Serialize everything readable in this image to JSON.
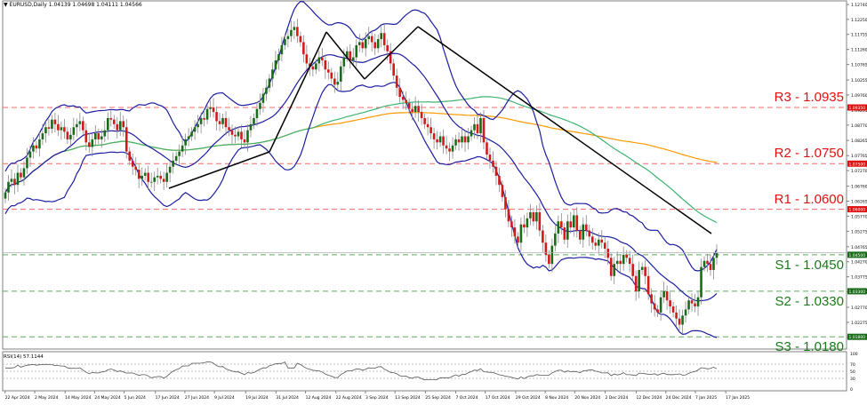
{
  "header": {
    "symbol": "EURUSD,Daily",
    "ohlc": "1.04139 1.04698 1.04111 1.04566"
  },
  "rsi_header": "RSI(14) 57.1144",
  "colors": {
    "bull": "#1a6b1a",
    "bear": "#d11a1a",
    "bollinger": "#1c1ca0",
    "ma_fast": "#3cb371",
    "ma_slow": "#ff9900",
    "trendline": "#000000",
    "resistance": "#ff6666",
    "support": "#5faa5f",
    "frame": "#808080"
  },
  "levels": [
    {
      "name": "R3",
      "label": "R3 - 1.0935",
      "price": 1.0935,
      "type": "resistance",
      "tag": "1.09350"
    },
    {
      "name": "R2",
      "label": "R2 - 1.0750",
      "price": 1.075,
      "type": "resistance",
      "tag": "1.07500"
    },
    {
      "name": "R1",
      "label": "R1 - 1.0600",
      "price": 1.06,
      "type": "resistance",
      "tag": "1.06000"
    },
    {
      "name": "S1",
      "label": "S1 - 1.0450",
      "price": 1.045,
      "type": "support",
      "tag": "1.04500"
    },
    {
      "name": "S2",
      "label": "S2 - 1.0330",
      "price": 1.033,
      "type": "support",
      "tag": "1.03300"
    },
    {
      "name": "S3",
      "label": "S3 - 1.0180",
      "price": 1.018,
      "type": "support",
      "tag": "1.01800"
    }
  ],
  "chart_data": {
    "type": "candlestick",
    "title": "EURUSD,Daily",
    "subtitle": "1.04139 1.04698 1.04111 1.04566",
    "price_axis": {
      "ticks": [
        "1.12740",
        "1.12250",
        "1.11755",
        "1.11260",
        "1.10765",
        "1.10255",
        "1.09760",
        "1.09265",
        "1.08770",
        "1.08265",
        "1.07765",
        "1.07270",
        "1.06760",
        "1.06265",
        "1.05770",
        "1.05275",
        "1.04765",
        "1.04270",
        "1.03775",
        "1.03280",
        "1.02770",
        "1.02275",
        "1.01780",
        "1.01285"
      ],
      "range": [
        1.0125,
        1.1275
      ]
    },
    "date_axis": [
      "22 Apr 2024",
      "2 May 2024",
      "14 May 2024",
      "24 May 2024",
      "5 Jun 2024",
      "17 Jun 2024",
      "27 Jun 2024",
      "9 Jul 2024",
      "19 Jul 2024",
      "31 Jul 2024",
      "12 Aug 2024",
      "22 Aug 2024",
      "3 Sep 2024",
      "13 Sep 2024",
      "25 Sep 2024",
      "7 Oct 2024",
      "17 Oct 2024",
      "29 Oct 2024",
      "8 Nov 2024",
      "20 Nov 2024",
      "2 Dec 2024",
      "12 Dec 2024",
      "24 Dec 2024",
      "7 Jan 2025",
      "17 Jan 2025"
    ],
    "close_path": [
      1.0655,
      1.069,
      1.07,
      1.068,
      1.072,
      1.0705,
      1.0735,
      1.077,
      1.079,
      1.081,
      1.08,
      1.083,
      1.085,
      1.087,
      1.0865,
      1.0895,
      1.088,
      1.086,
      1.087,
      1.0855,
      1.083,
      1.0845,
      1.087,
      1.088,
      1.089,
      1.086,
      1.082,
      1.0805,
      1.083,
      1.085,
      1.083,
      1.084,
      1.086,
      1.09,
      1.0895,
      1.088,
      1.086,
      1.089,
      1.087,
      1.079,
      1.076,
      1.074,
      1.073,
      1.07,
      1.071,
      1.072,
      1.069,
      1.069,
      1.0705,
      1.071,
      1.07,
      1.069,
      1.072,
      1.074,
      1.076,
      1.0775,
      1.079,
      1.081,
      1.083,
      1.084,
      1.0855,
      1.087,
      1.088,
      1.09,
      1.0895,
      1.093,
      1.0935,
      1.092,
      1.089,
      1.088,
      1.09,
      1.087,
      1.086,
      1.0845,
      1.084,
      1.0855,
      1.083,
      1.082,
      1.086,
      1.088,
      1.09,
      1.093,
      1.095,
      1.098,
      1.1,
      1.103,
      1.106,
      1.109,
      1.111,
      1.114,
      1.116,
      1.117,
      1.119,
      1.12,
      1.117,
      1.115,
      1.111,
      1.108,
      1.107,
      1.106,
      1.108,
      1.11,
      1.109,
      1.106,
      1.105,
      1.103,
      1.101,
      1.102,
      1.107,
      1.11,
      1.112,
      1.109,
      1.11,
      1.114,
      1.115,
      1.113,
      1.116,
      1.117,
      1.115,
      1.113,
      1.116,
      1.118,
      1.114,
      1.112,
      1.108,
      1.104,
      1.1,
      1.097,
      1.096,
      1.095,
      1.093,
      1.092,
      1.094,
      1.092,
      1.09,
      1.088,
      1.087,
      1.085,
      1.083,
      1.082,
      1.084,
      1.081,
      1.08,
      1.079,
      1.081,
      1.083,
      1.082,
      1.084,
      1.082,
      1.084,
      1.086,
      1.088,
      1.085,
      1.09,
      1.082,
      1.078,
      1.076,
      1.074,
      1.071,
      1.068,
      1.064,
      1.06,
      1.056,
      1.054,
      1.051,
      1.049,
      1.055,
      1.054,
      1.057,
      1.059,
      1.056,
      1.059,
      1.053,
      1.049,
      1.045,
      1.042,
      1.048,
      1.052,
      1.056,
      1.054,
      1.05,
      1.056,
      1.054,
      1.058,
      1.053,
      1.05,
      1.055,
      1.053,
      1.051,
      1.049,
      1.048,
      1.05,
      1.049,
      1.047,
      1.044,
      1.038,
      1.042,
      1.043,
      1.042,
      1.045,
      1.044,
      1.042,
      1.038,
      1.033,
      1.04,
      1.041,
      1.038,
      1.032,
      1.029,
      1.027,
      1.026,
      1.031,
      1.033,
      1.03,
      1.028,
      1.026,
      1.024,
      1.022,
      1.025,
      1.027,
      1.03,
      1.029,
      1.028,
      1.031,
      1.041,
      1.043,
      1.042,
      1.04,
      1.044,
      1.0457
    ],
    "indicators": [
      "Bollinger Bands (20,2)",
      "Moving average (green)",
      "Moving average (orange)",
      "RSI(14)"
    ],
    "rsi": {
      "value": 57.1144,
      "levels": [
        70,
        50,
        30
      ],
      "ticks": [
        "100",
        "70",
        "50",
        "30",
        "0"
      ],
      "range": [
        0,
        100
      ]
    },
    "last_price_tag": "1.04566",
    "support_resistance": [
      {
        "label": "R3",
        "value": 1.0935
      },
      {
        "label": "R2",
        "value": 1.075
      },
      {
        "label": "R1",
        "value": 1.06
      },
      {
        "label": "S1",
        "value": 1.045
      },
      {
        "label": "S2",
        "value": 1.033
      },
      {
        "label": "S3",
        "value": 1.018
      }
    ],
    "trendlines": [
      {
        "from_date": "25 Jun 2024",
        "from": 1.0665,
        "to_date": "1 Aug 2024",
        "to": 1.0795
      },
      {
        "from_date": "1 Aug 2024",
        "from": 1.0795,
        "to_date": "26 Aug 2024",
        "to": 1.12
      },
      {
        "from_date": "26 Aug 2024",
        "from": 1.12,
        "to_date": "6 Sep 2024",
        "to": 1.1005
      },
      {
        "from_date": "6 Sep 2024",
        "from": 1.1005,
        "to_date": "25 Sep 2024",
        "to": 1.115
      },
      {
        "from_date": "25 Sep 2024",
        "from": 1.121,
        "to_date": "20 Jan 2025",
        "to": 1.039
      }
    ],
    "legend_position": "none",
    "grid": false
  }
}
